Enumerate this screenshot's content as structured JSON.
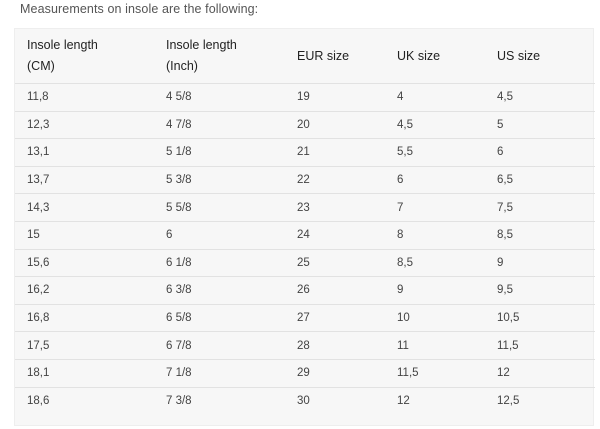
{
  "intro_text": "Measurements on insole are the following:",
  "headers": [
    {
      "line1": "Insole length",
      "line2": "(CM)"
    },
    {
      "line1": "Insole length",
      "line2": "(Inch)"
    },
    {
      "line1": "EUR size",
      "line2": ""
    },
    {
      "line1": "UK size",
      "line2": ""
    },
    {
      "line1": "US size",
      "line2": ""
    }
  ],
  "rows": [
    [
      "11,8",
      "4 5/8",
      "19",
      "4",
      "4,5"
    ],
    [
      "12,3",
      "4 7/8",
      "20",
      "4,5",
      "5"
    ],
    [
      "13,1",
      "5 1/8",
      "21",
      "5,5",
      "6"
    ],
    [
      "13,7",
      "5 3/8",
      "22",
      "6",
      "6,5"
    ],
    [
      "14,3",
      "5 5/8",
      "23",
      "7",
      "7,5"
    ],
    [
      "15",
      "6",
      "24",
      "8",
      "8,5"
    ],
    [
      "15,6",
      "6 1/8",
      "25",
      "8,5",
      "9"
    ],
    [
      "16,2",
      "6 3/8",
      "26",
      "9",
      "9,5"
    ],
    [
      "16,8",
      "6 5/8",
      "27",
      "10",
      "10,5"
    ],
    [
      "17,5",
      "6 7/8",
      "28",
      "11",
      "11,5"
    ],
    [
      "18,1",
      "7 1/8",
      "29",
      "11,5",
      "12"
    ],
    [
      "18,6",
      "7 3/8",
      "30",
      "12",
      "12,5"
    ]
  ]
}
